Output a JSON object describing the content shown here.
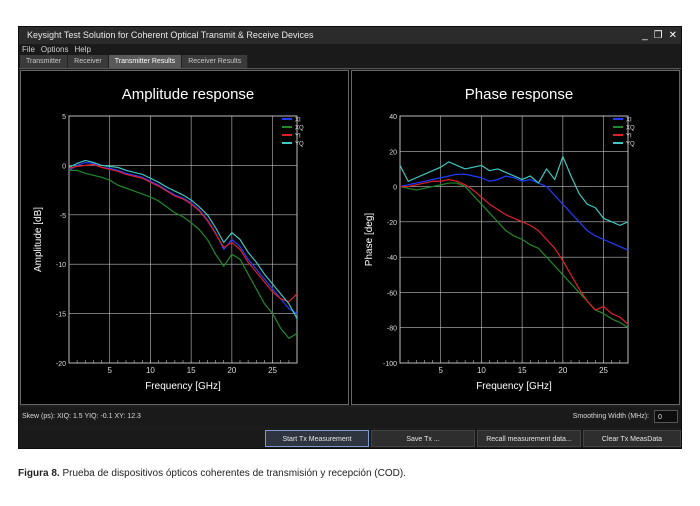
{
  "window": {
    "title": "Keysight Test Solution for Coherent Optical Transmit & Receive Devices",
    "minimize": "_",
    "restore": "❐",
    "close": "✕"
  },
  "menu": [
    "File",
    "Options",
    "Help"
  ],
  "tabs": [
    {
      "label": "Transmitter",
      "active": false
    },
    {
      "label": "Receiver",
      "active": false
    },
    {
      "label": "Transmitter Results",
      "active": true
    },
    {
      "label": "Receiver Results",
      "active": false
    }
  ],
  "status": {
    "skew": "Skew (ps): XIQ: 1.5 YIQ: -0.1 XY: 12.3",
    "smoothing_label": "Smoothing Width (MHz):",
    "smoothing_value": "0"
  },
  "buttons": {
    "start": "Start Tx Measurement",
    "save": "Save Tx ...",
    "recall": "Recall measurement data...",
    "clear": "Clear Tx MeasData"
  },
  "caption": {
    "label": "Figura 8.",
    "text": " Prueba de dispositivos ópticos coherentes de transmisión y recepción (COD)."
  },
  "colors": {
    "XI": "#1f3dff",
    "XQ": "#1f8a2a",
    "YI": "#e0202a",
    "YQ": "#3fc7c0"
  },
  "chart_data": [
    {
      "type": "line",
      "title": "Amplitude response",
      "xlabel": "Frequency [GHz]",
      "ylabel": "Amplitude [dB]",
      "xlim": [
        0,
        28
      ],
      "ylim": [
        -20,
        5
      ],
      "xticks": [
        5,
        10,
        15,
        20,
        25
      ],
      "yticks": [
        5,
        0,
        -5,
        -10,
        -15,
        -20
      ],
      "grid": true,
      "legend_position": "top-right",
      "x": [
        0,
        1,
        2,
        3,
        4,
        5,
        6,
        7,
        8,
        9,
        10,
        11,
        12,
        13,
        14,
        15,
        16,
        17,
        18,
        19,
        20,
        21,
        22,
        23,
        24,
        25,
        26,
        27,
        28
      ],
      "series": [
        {
          "name": "XI",
          "values": [
            -0.5,
            0,
            0.3,
            0.2,
            -0.2,
            -0.3,
            -0.5,
            -0.8,
            -1.0,
            -1.2,
            -1.6,
            -2.0,
            -2.5,
            -3.0,
            -3.3,
            -3.8,
            -4.5,
            -5.5,
            -6.8,
            -8.5,
            -7.5,
            -8.2,
            -9.5,
            -10.5,
            -11.5,
            -12.5,
            -13.5,
            -14.5,
            -15.0
          ]
        },
        {
          "name": "XQ",
          "values": [
            -0.5,
            -0.5,
            -0.8,
            -1.0,
            -1.2,
            -1.5,
            -2.0,
            -2.3,
            -2.6,
            -2.9,
            -3.2,
            -3.6,
            -4.2,
            -4.8,
            -5.2,
            -5.8,
            -6.5,
            -7.5,
            -9.0,
            -10.2,
            -9.0,
            -9.5,
            -11.0,
            -12.5,
            -14.0,
            -15.0,
            -16.5,
            -17.5,
            -17.0
          ]
        },
        {
          "name": "YI",
          "values": [
            -0.3,
            -0.1,
            0.0,
            0.1,
            -0.2,
            -0.4,
            -0.6,
            -0.9,
            -1.1,
            -1.3,
            -1.7,
            -2.1,
            -2.6,
            -3.1,
            -3.4,
            -3.9,
            -4.6,
            -5.6,
            -6.9,
            -8.3,
            -7.8,
            -8.5,
            -9.8,
            -10.8,
            -11.8,
            -12.8,
            -13.5,
            -13.8,
            -13.0
          ]
        },
        {
          "name": "YQ",
          "values": [
            -0.2,
            0.2,
            0.5,
            0.3,
            0.0,
            -0.1,
            -0.2,
            -0.5,
            -0.7,
            -0.9,
            -1.3,
            -1.7,
            -2.2,
            -2.6,
            -3.0,
            -3.5,
            -4.2,
            -5.0,
            -6.3,
            -7.8,
            -6.8,
            -7.5,
            -8.8,
            -9.8,
            -11.0,
            -12.0,
            -13.0,
            -14.0,
            -15.5
          ]
        }
      ]
    },
    {
      "type": "line",
      "title": "Phase response",
      "xlabel": "Frequency [GHz]",
      "ylabel": "Phase [deg]",
      "xlim": [
        0,
        28
      ],
      "ylim": [
        -100,
        40
      ],
      "xticks": [
        5,
        10,
        15,
        20,
        25
      ],
      "yticks": [
        40,
        20,
        0,
        -20,
        -40,
        -60,
        -80,
        -100
      ],
      "grid": true,
      "legend_position": "top-right",
      "x": [
        0,
        1,
        2,
        3,
        4,
        5,
        6,
        7,
        8,
        9,
        10,
        11,
        12,
        13,
        14,
        15,
        16,
        17,
        18,
        19,
        20,
        21,
        22,
        23,
        24,
        25,
        26,
        27,
        28
      ],
      "series": [
        {
          "name": "XI",
          "values": [
            0,
            1,
            2,
            3,
            4,
            5,
            6,
            7,
            7,
            6,
            5,
            3,
            4,
            6,
            5,
            3,
            4,
            2,
            0,
            -5,
            -10,
            -15,
            -20,
            -25,
            -28,
            -30,
            -32,
            -34,
            -36
          ]
        },
        {
          "name": "XQ",
          "values": [
            0,
            -1,
            -2,
            -1,
            0,
            1,
            2,
            2,
            0,
            -5,
            -10,
            -15,
            -20,
            -25,
            -28,
            -30,
            -33,
            -35,
            -40,
            -45,
            -50,
            -55,
            -60,
            -65,
            -70,
            -72,
            -75,
            -77,
            -80
          ]
        },
        {
          "name": "YI",
          "values": [
            0,
            0,
            1,
            2,
            3,
            3,
            4,
            3,
            1,
            -2,
            -6,
            -10,
            -13,
            -16,
            -18,
            -20,
            -22,
            -25,
            -30,
            -35,
            -42,
            -50,
            -58,
            -65,
            -70,
            -68,
            -72,
            -74,
            -78
          ]
        },
        {
          "name": "YQ",
          "values": [
            12,
            3,
            5,
            7,
            9,
            11,
            14,
            12,
            10,
            11,
            12,
            9,
            10,
            8,
            6,
            4,
            6,
            2,
            10,
            4,
            17,
            6,
            -4,
            -10,
            -12,
            -18,
            -20,
            -22,
            -20
          ]
        }
      ]
    }
  ]
}
